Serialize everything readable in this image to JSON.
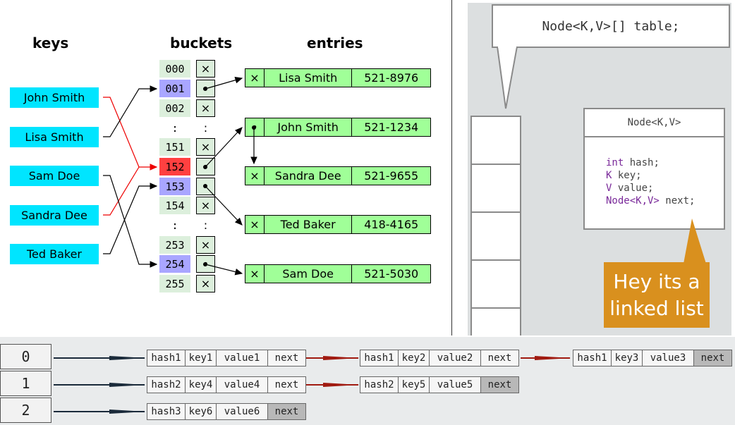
{
  "hash_table": {
    "headers": {
      "keys": "keys",
      "buckets": "buckets",
      "entries": "entries"
    },
    "keys": [
      "John Smith",
      "Lisa Smith",
      "Sam Doe",
      "Sandra Dee",
      "Ted Baker"
    ],
    "buckets": [
      {
        "num": "000",
        "cell": "×",
        "style": "plain"
      },
      {
        "num": "001",
        "cell": "•",
        "style": "blue"
      },
      {
        "num": "002",
        "cell": "×",
        "style": "plain"
      },
      {
        "num": ":",
        "cell": ":",
        "style": "dot"
      },
      {
        "num": "151",
        "cell": "×",
        "style": "plain"
      },
      {
        "num": "152",
        "cell": "•",
        "style": "red"
      },
      {
        "num": "153",
        "cell": "•",
        "style": "blue"
      },
      {
        "num": "154",
        "cell": "×",
        "style": "plain"
      },
      {
        "num": ":",
        "cell": ":",
        "style": "dot"
      },
      {
        "num": "253",
        "cell": "×",
        "style": "plain"
      },
      {
        "num": "254",
        "cell": "•",
        "style": "blue"
      },
      {
        "num": "255",
        "cell": "×",
        "style": "plain"
      }
    ],
    "entries": [
      {
        "ptr": "×",
        "name": "Lisa Smith",
        "phone": "521-8976"
      },
      {
        "ptr": "•",
        "name": "John Smith",
        "phone": "521-1234"
      },
      {
        "ptr": "×",
        "name": "Sandra Dee",
        "phone": "521-9655"
      },
      {
        "ptr": "×",
        "name": "Ted Baker",
        "phone": "418-4165"
      },
      {
        "ptr": "×",
        "name": "Sam Doe",
        "phone": "521-5030"
      }
    ],
    "colors": {
      "key_bg": "#00e5ff",
      "entry_bg": "#a0ff98",
      "collision": "#ff4040",
      "used_bucket": "#a9a6ff"
    }
  },
  "node_view": {
    "table_decl": "Node<K,V>[] table;",
    "node_title": "Node<K,V>",
    "fields": [
      {
        "type": "int",
        "name": "hash;"
      },
      {
        "type": "K",
        "name": "key;"
      },
      {
        "type": "V",
        "name": "value;"
      },
      {
        "type": "Node<K,V>",
        "name": "next;"
      }
    ],
    "note_line1": "Hey its a",
    "note_line2": "linked list",
    "colors": {
      "note_bg": "#d9901e"
    }
  },
  "chains": {
    "indices": [
      "0",
      "1",
      "2"
    ],
    "rows": [
      [
        {
          "hash": "hash1",
          "key": "key1",
          "value": "value1",
          "next": "next"
        },
        {
          "hash": "hash1",
          "key": "key2",
          "value": "value2",
          "next": "next"
        },
        {
          "hash": "hash1",
          "key": "key3",
          "value": "value3",
          "next": "next"
        }
      ],
      [
        {
          "hash": "hash2",
          "key": "key4",
          "value": "value4",
          "next": "next"
        },
        {
          "hash": "hash2",
          "key": "key5",
          "value": "value5",
          "next": "next"
        }
      ],
      [
        {
          "hash": "hash3",
          "key": "key6",
          "value": "value6",
          "next": "next"
        }
      ]
    ]
  }
}
